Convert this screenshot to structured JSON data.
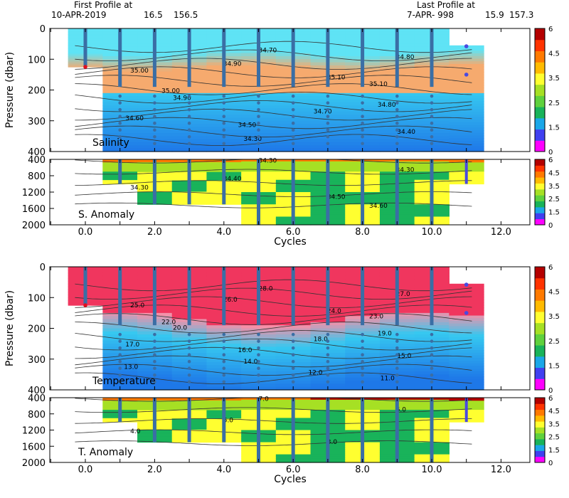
{
  "header": {
    "first_label": "First Profile at",
    "first_date": "10-APR-2019",
    "first_lat": "16.5",
    "first_lon": "156.5",
    "last_label": "Last Profile at",
    "last_date": "7-APR- 998",
    "last_lat": "15.9",
    "last_lon": "157.3"
  },
  "colors": {
    "cyan_light": "#5fe3f5",
    "cyan": "#36c8f0",
    "blue_mid": "#2f9df0",
    "blue_deep": "#1e78e8",
    "orange_sal": "#f6aa6e",
    "pink_light": "#f590a8",
    "red_temp": "#f0365e",
    "profile_marker": "#3a6ea5",
    "last_marker": "#4a4ae0",
    "first_marker": "#e01020"
  },
  "chart_data": [
    {
      "type": "heatmap",
      "name": "Salinity",
      "panel_label": "Salinity",
      "ylabel": "Pressure (dbar)",
      "ylim": [
        400,
        0
      ],
      "yticks": [
        "0",
        "100",
        "200",
        "300",
        "400"
      ],
      "xlim": [
        -1,
        13
      ],
      "contour_labels": [
        "34.70",
        "34.80",
        "34.90",
        "35.00",
        "35.10",
        "35.10",
        "35.00",
        "34.90",
        "34.80",
        "34.70",
        "34.60",
        "34.50",
        "34.40",
        "34.30"
      ]
    },
    {
      "type": "heatmap",
      "name": "S. Anomaly",
      "panel_label": "S. Anomaly",
      "ylim": [
        2000,
        400
      ],
      "yticks": [
        "400",
        "800",
        "1200",
        "1600",
        "2000"
      ],
      "colorbar_ticks": [
        "6",
        "4.5",
        "3.5",
        "2.5",
        "1.5",
        "0"
      ],
      "contour_labels": [
        "34.30",
        "34.30",
        "34.40",
        "34.30",
        "34.50",
        "34.60"
      ],
      "xlabel": "Cycles",
      "xticks": [
        "0.0",
        "2.0",
        "4.0",
        "6.0",
        "8.0",
        "10.0",
        "12.0"
      ]
    },
    {
      "type": "heatmap",
      "name": "Temperature",
      "panel_label": "Temperature",
      "ylabel": "Pressure (dbar)",
      "ylim": [
        400,
        0
      ],
      "yticks": [
        "0",
        "100",
        "200",
        "300",
        "400"
      ],
      "contour_labels": [
        "28.0",
        "27.0",
        "26.0",
        "25.0",
        "24.0",
        "23.0",
        "22.0",
        "20.0",
        "19.0",
        "18.0",
        "17.0",
        "16.0",
        "15.0",
        "14.0",
        "13.0",
        "12.0",
        "11.0"
      ]
    },
    {
      "type": "heatmap",
      "name": "T. Anomaly",
      "panel_label": "T. Anomaly",
      "ylim": [
        2000,
        400
      ],
      "yticks": [
        "400",
        "800",
        "1200",
        "1600",
        "2000"
      ],
      "colorbar_ticks": [
        "6",
        "4.5",
        "3.5",
        "2.5",
        "1.5",
        "0"
      ],
      "contour_labels": [
        "7.0",
        "6.0",
        "5.0",
        "4.0",
        "3.0"
      ],
      "xlabel": "Cycles",
      "xticks": [
        "0.0",
        "2.0",
        "4.0",
        "6.0",
        "8.0",
        "10.0",
        "12.0"
      ]
    }
  ],
  "colorbar": {
    "ticks": [
      "6",
      "4.5",
      "3.5",
      "2.5",
      "1.5",
      "0"
    ],
    "colors": [
      "#ff00ff",
      "#4040f0",
      "#1aa7e8",
      "#19b35a",
      "#5fd13d",
      "#a6e024",
      "#ffff30",
      "#ffbb00",
      "#ff7a00",
      "#ff3300",
      "#b40000"
    ]
  },
  "profiles": {
    "cycles": [
      0,
      1,
      2,
      3,
      4,
      5,
      6,
      7,
      8,
      9,
      10,
      11
    ]
  }
}
